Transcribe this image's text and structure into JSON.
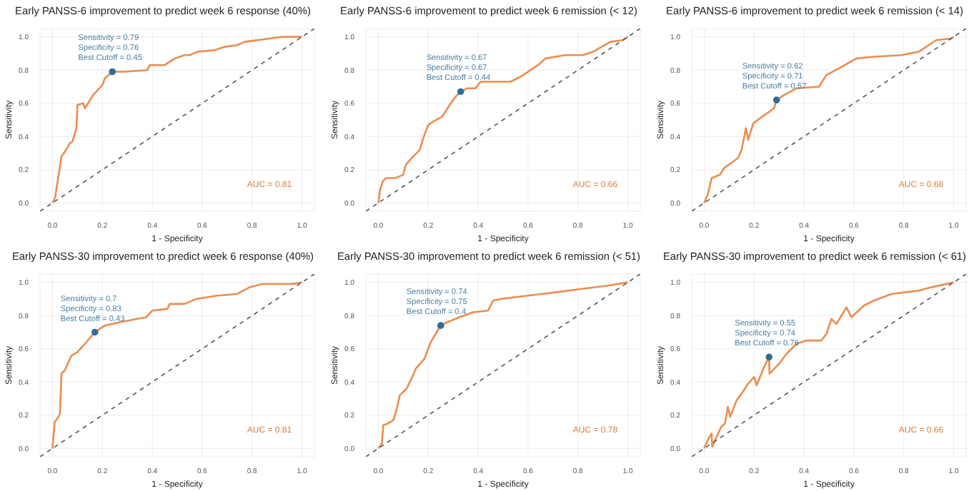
{
  "chart_data": [
    {
      "type": "line",
      "title": "Early PANSS-6 improvement to predict week 6 response (40%)",
      "xlabel": "1 - Specificity",
      "ylabel": "Sensitivity",
      "xlim": [
        -0.05,
        1.05
      ],
      "ylim": [
        -0.05,
        1.05
      ],
      "xticks": [
        {
          "value": 0,
          "label": "0.0"
        },
        {
          "value": 0.2,
          "label": "0.2"
        },
        {
          "value": 0.4,
          "label": "0.4"
        },
        {
          "value": 0.6,
          "label": "0.6"
        },
        {
          "value": 0.8,
          "label": "0.8"
        },
        {
          "value": 1,
          "label": "1.0"
        }
      ],
      "yticks": [
        {
          "value": 0,
          "label": "0.0"
        },
        {
          "value": 0.2,
          "label": "0.2"
        },
        {
          "value": 0.4,
          "label": "0.4"
        },
        {
          "value": 0.6,
          "label": "0.6"
        },
        {
          "value": 0.8,
          "label": "0.8"
        },
        {
          "value": 1,
          "label": "1.0"
        }
      ],
      "grid": true,
      "series": [
        {
          "type": "line",
          "color": "#ec8c4f",
          "x": [
            0,
            0.01,
            0.027,
            0.036,
            0.05,
            0.07,
            0.08,
            0.096,
            0.1,
            0.123,
            0.13,
            0.163,
            0.2,
            0.21,
            0.24,
            0.29,
            0.38,
            0.39,
            0.45,
            0.49,
            0.53,
            0.55,
            0.58,
            0.65,
            0.69,
            0.74,
            0.77,
            0.87,
            0.92,
            1
          ],
          "values": [
            0,
            0.03,
            0.19,
            0.28,
            0.31,
            0.36,
            0.37,
            0.45,
            0.59,
            0.6,
            0.57,
            0.65,
            0.71,
            0.75,
            0.79,
            0.79,
            0.8,
            0.83,
            0.83,
            0.87,
            0.89,
            0.89,
            0.91,
            0.92,
            0.94,
            0.95,
            0.97,
            0.99,
            1,
            1
          ]
        },
        {
          "type": "scatter",
          "color": "#2c6e9b",
          "marker": "circle",
          "x": [
            0.24
          ],
          "values": [
            0.79
          ]
        },
        {
          "type": "line",
          "color": "#555555",
          "line_style": "dashed",
          "x": [
            -0.05,
            1.05
          ],
          "values": [
            -0.05,
            1.05
          ]
        }
      ],
      "annotations": [
        "Sensitivity = 0.79\nSpecificity = 0.76\nBest Cutoff = 0.45",
        "AUC = 0.81"
      ]
    },
    {
      "type": "line",
      "title": "Early PANSS-6 improvement to predict week 6 remission (< 12)",
      "xlabel": "1 - Specificity",
      "ylabel": "Sensitivity",
      "xlim": [
        -0.05,
        1.05
      ],
      "ylim": [
        -0.05,
        1.05
      ],
      "xticks": [
        {
          "value": 0,
          "label": "0.0"
        },
        {
          "value": 0.2,
          "label": "0.2"
        },
        {
          "value": 0.4,
          "label": "0.4"
        },
        {
          "value": 0.6,
          "label": "0.6"
        },
        {
          "value": 0.8,
          "label": "0.8"
        },
        {
          "value": 1,
          "label": "1.0"
        }
      ],
      "yticks": [
        {
          "value": 0,
          "label": "0.0"
        },
        {
          "value": 0.2,
          "label": "0.2"
        },
        {
          "value": 0.4,
          "label": "0.4"
        },
        {
          "value": 0.6,
          "label": "0.6"
        },
        {
          "value": 0.8,
          "label": "0.8"
        },
        {
          "value": 1,
          "label": "1.0"
        }
      ],
      "grid": true,
      "series": [
        {
          "type": "line",
          "color": "#ec8c4f",
          "x": [
            0,
            0.007,
            0.018,
            0.03,
            0.067,
            0.085,
            0.1,
            0.11,
            0.14,
            0.166,
            0.18,
            0.2,
            0.22,
            0.256,
            0.29,
            0.31,
            0.33,
            0.355,
            0.39,
            0.41,
            0.53,
            0.57,
            0.61,
            0.64,
            0.67,
            0.75,
            0.82,
            0.86,
            0.93,
            0.98,
            1
          ],
          "values": [
            0,
            0.08,
            0.13,
            0.15,
            0.15,
            0.16,
            0.17,
            0.23,
            0.28,
            0.32,
            0.39,
            0.47,
            0.49,
            0.52,
            0.6,
            0.64,
            0.67,
            0.69,
            0.69,
            0.73,
            0.73,
            0.76,
            0.8,
            0.83,
            0.87,
            0.89,
            0.89,
            0.91,
            0.97,
            0.98,
            1
          ]
        },
        {
          "type": "scatter",
          "color": "#2c6e9b",
          "marker": "circle",
          "x": [
            0.33
          ],
          "values": [
            0.67
          ]
        },
        {
          "type": "line",
          "color": "#555555",
          "line_style": "dashed",
          "x": [
            -0.05,
            1.05
          ],
          "values": [
            -0.05,
            1.05
          ]
        }
      ],
      "annotations": [
        "Sensitivity = 0.67\nSpecificity = 0.67\nBest Cutoff = 0.44",
        "AUC = 0.66"
      ]
    },
    {
      "type": "line",
      "title": "Early PANSS-6 improvement to predict week 6 remission (< 14)",
      "xlabel": "1 - Specificity",
      "ylabel": "Sensitivity",
      "xlim": [
        -0.05,
        1.05
      ],
      "ylim": [
        -0.05,
        1.05
      ],
      "xticks": [
        {
          "value": 0,
          "label": "0.0"
        },
        {
          "value": 0.2,
          "label": "0.2"
        },
        {
          "value": 0.4,
          "label": "0.4"
        },
        {
          "value": 0.6,
          "label": "0.6"
        },
        {
          "value": 0.8,
          "label": "0.8"
        },
        {
          "value": 1,
          "label": "1.0"
        }
      ],
      "yticks": [
        {
          "value": 0,
          "label": "0.0"
        },
        {
          "value": 0.2,
          "label": "0.2"
        },
        {
          "value": 0.4,
          "label": "0.4"
        },
        {
          "value": 0.6,
          "label": "0.6"
        },
        {
          "value": 0.8,
          "label": "0.8"
        },
        {
          "value": 1,
          "label": "1.0"
        }
      ],
      "grid": true,
      "series": [
        {
          "type": "line",
          "color": "#ec8c4f",
          "x": [
            0,
            0.014,
            0.03,
            0.063,
            0.08,
            0.108,
            0.135,
            0.15,
            0.167,
            0.176,
            0.197,
            0.233,
            0.28,
            0.29,
            0.32,
            0.37,
            0.46,
            0.49,
            0.54,
            0.61,
            0.68,
            0.79,
            0.86,
            0.93,
            0.99,
            1
          ],
          "values": [
            0,
            0.05,
            0.15,
            0.17,
            0.21,
            0.24,
            0.27,
            0.32,
            0.45,
            0.38,
            0.48,
            0.52,
            0.57,
            0.62,
            0.65,
            0.69,
            0.7,
            0.77,
            0.81,
            0.87,
            0.88,
            0.89,
            0.91,
            0.98,
            0.99,
            1
          ]
        },
        {
          "type": "scatter",
          "color": "#2c6e9b",
          "marker": "circle",
          "x": [
            0.29
          ],
          "values": [
            0.62
          ]
        },
        {
          "type": "line",
          "color": "#555555",
          "line_style": "dashed",
          "x": [
            -0.05,
            1.05
          ],
          "values": [
            -0.05,
            1.05
          ]
        }
      ],
      "annotations": [
        "Sensitivity = 0.62\nSpecificity = 0.71\nBest Cutoff = 0.57",
        "AUC = 0.68"
      ]
    },
    {
      "type": "line",
      "title": "Early PANSS-30 improvement to predict week 6 response (40%)",
      "xlabel": "1 - Specificity",
      "ylabel": "Sensitivity",
      "xlim": [
        -0.05,
        1.05
      ],
      "ylim": [
        -0.05,
        1.05
      ],
      "xticks": [
        {
          "value": 0,
          "label": "0.0"
        },
        {
          "value": 0.2,
          "label": "0.2"
        },
        {
          "value": 0.4,
          "label": "0.4"
        },
        {
          "value": 0.6,
          "label": "0.6"
        },
        {
          "value": 0.8,
          "label": "0.8"
        },
        {
          "value": 1,
          "label": "1.0"
        }
      ],
      "yticks": [
        {
          "value": 0,
          "label": "0.0"
        },
        {
          "value": 0.2,
          "label": "0.2"
        },
        {
          "value": 0.4,
          "label": "0.4"
        },
        {
          "value": 0.6,
          "label": "0.6"
        },
        {
          "value": 0.8,
          "label": "0.8"
        },
        {
          "value": 1,
          "label": "1.0"
        }
      ],
      "grid": true,
      "series": [
        {
          "type": "line",
          "color": "#ec8c4f",
          "x": [
            0,
            0.009,
            0.02,
            0.03,
            0.036,
            0.049,
            0.067,
            0.076,
            0.1,
            0.13,
            0.17,
            0.21,
            0.27,
            0.34,
            0.376,
            0.4,
            0.46,
            0.47,
            0.53,
            0.576,
            0.66,
            0.74,
            0.79,
            0.84,
            0.96,
            1
          ],
          "values": [
            0,
            0.16,
            0.18,
            0.21,
            0.45,
            0.47,
            0.53,
            0.56,
            0.58,
            0.63,
            0.7,
            0.74,
            0.76,
            0.78,
            0.79,
            0.83,
            0.84,
            0.87,
            0.87,
            0.9,
            0.92,
            0.93,
            0.97,
            0.99,
            0.99,
            1
          ]
        },
        {
          "type": "scatter",
          "color": "#2c6e9b",
          "marker": "circle",
          "x": [
            0.17
          ],
          "values": [
            0.7
          ]
        },
        {
          "type": "line",
          "color": "#555555",
          "line_style": "dashed",
          "x": [
            -0.05,
            1.05
          ],
          "values": [
            -0.05,
            1.05
          ]
        }
      ],
      "annotations": [
        "Sensitivity = 0.7\nSpecificity = 0.83\nBest Cutoff = 0.43",
        "AUC = 0.81"
      ]
    },
    {
      "type": "line",
      "title": "Early PANSS-30 improvement to predict week 6 remission (< 51)",
      "xlabel": "1 - Specificity",
      "ylabel": "Sensitivity",
      "xlim": [
        -0.05,
        1.05
      ],
      "ylim": [
        -0.05,
        1.05
      ],
      "xticks": [
        {
          "value": 0,
          "label": "0.0"
        },
        {
          "value": 0.2,
          "label": "0.2"
        },
        {
          "value": 0.4,
          "label": "0.4"
        },
        {
          "value": 0.6,
          "label": "0.6"
        },
        {
          "value": 0.8,
          "label": "0.8"
        },
        {
          "value": 1,
          "label": "1.0"
        }
      ],
      "yticks": [
        {
          "value": 0,
          "label": "0.0"
        },
        {
          "value": 0.2,
          "label": "0.2"
        },
        {
          "value": 0.4,
          "label": "0.4"
        },
        {
          "value": 0.6,
          "label": "0.6"
        },
        {
          "value": 0.8,
          "label": "0.8"
        },
        {
          "value": 1,
          "label": "1.0"
        }
      ],
      "grid": true,
      "series": [
        {
          "type": "line",
          "color": "#ec8c4f",
          "x": [
            0,
            0.014,
            0.02,
            0.038,
            0.06,
            0.074,
            0.086,
            0.113,
            0.13,
            0.15,
            0.185,
            0.21,
            0.23,
            0.25,
            0.275,
            0.325,
            0.38,
            0.44,
            0.46,
            0.49,
            0.6,
            0.71,
            0.81,
            0.92,
            1
          ],
          "values": [
            0,
            0.03,
            0.14,
            0.15,
            0.17,
            0.24,
            0.32,
            0.36,
            0.41,
            0.48,
            0.54,
            0.64,
            0.69,
            0.74,
            0.76,
            0.79,
            0.82,
            0.83,
            0.89,
            0.9,
            0.92,
            0.94,
            0.96,
            0.98,
            1
          ]
        },
        {
          "type": "scatter",
          "color": "#2c6e9b",
          "marker": "circle",
          "x": [
            0.25
          ],
          "values": [
            0.74
          ]
        },
        {
          "type": "line",
          "color": "#555555",
          "line_style": "dashed",
          "x": [
            -0.05,
            1.05
          ],
          "values": [
            -0.05,
            1.05
          ]
        }
      ],
      "annotations": [
        "Sensitivity = 0.74\nSpecificity = 0.75\nBest Cutoff = 0.4",
        "AUC = 0.78"
      ]
    },
    {
      "type": "line",
      "title": "Early PANSS-30 improvement to predict week 6 remission (< 61)",
      "xlabel": "1 - Specificity",
      "ylabel": "Sensitivity",
      "xlim": [
        -0.05,
        1.05
      ],
      "ylim": [
        -0.05,
        1.05
      ],
      "xticks": [
        {
          "value": 0,
          "label": "0.0"
        },
        {
          "value": 0.2,
          "label": "0.2"
        },
        {
          "value": 0.4,
          "label": "0.4"
        },
        {
          "value": 0.6,
          "label": "0.6"
        },
        {
          "value": 0.8,
          "label": "0.8"
        },
        {
          "value": 1,
          "label": "1.0"
        }
      ],
      "yticks": [
        {
          "value": 0,
          "label": "0.0"
        },
        {
          "value": 0.2,
          "label": "0.2"
        },
        {
          "value": 0.4,
          "label": "0.4"
        },
        {
          "value": 0.6,
          "label": "0.6"
        },
        {
          "value": 0.8,
          "label": "0.8"
        },
        {
          "value": 1,
          "label": "1.0"
        }
      ],
      "grid": true,
      "series": [
        {
          "type": "line",
          "color": "#ec8c4f",
          "x": [
            0,
            0.014,
            0.03,
            0.032,
            0.05,
            0.068,
            0.083,
            0.095,
            0.104,
            0.13,
            0.15,
            0.176,
            0.2,
            0.21,
            0.24,
            0.26,
            0.262,
            0.3,
            0.33,
            0.37,
            0.41,
            0.47,
            0.49,
            0.51,
            0.53,
            0.57,
            0.59,
            0.64,
            0.68,
            0.75,
            0.86,
            0.91,
            1
          ],
          "values": [
            0,
            0.05,
            0.09,
            0.01,
            0.07,
            0.13,
            0.15,
            0.25,
            0.19,
            0.29,
            0.33,
            0.39,
            0.43,
            0.38,
            0.49,
            0.55,
            0.45,
            0.51,
            0.57,
            0.63,
            0.65,
            0.65,
            0.69,
            0.78,
            0.75,
            0.85,
            0.79,
            0.86,
            0.89,
            0.93,
            0.95,
            0.97,
            1
          ]
        },
        {
          "type": "scatter",
          "color": "#2c6e9b",
          "marker": "circle",
          "x": [
            0.26
          ],
          "values": [
            0.55
          ]
        },
        {
          "type": "line",
          "color": "#555555",
          "line_style": "dashed",
          "x": [
            -0.05,
            1.05
          ],
          "values": [
            -0.05,
            1.05
          ]
        }
      ],
      "annotations": [
        "Sensitivity = 0.55\nSpecificity = 0.74\nBest Cutoff = 0.76",
        "AUC = 0.66"
      ]
    }
  ]
}
